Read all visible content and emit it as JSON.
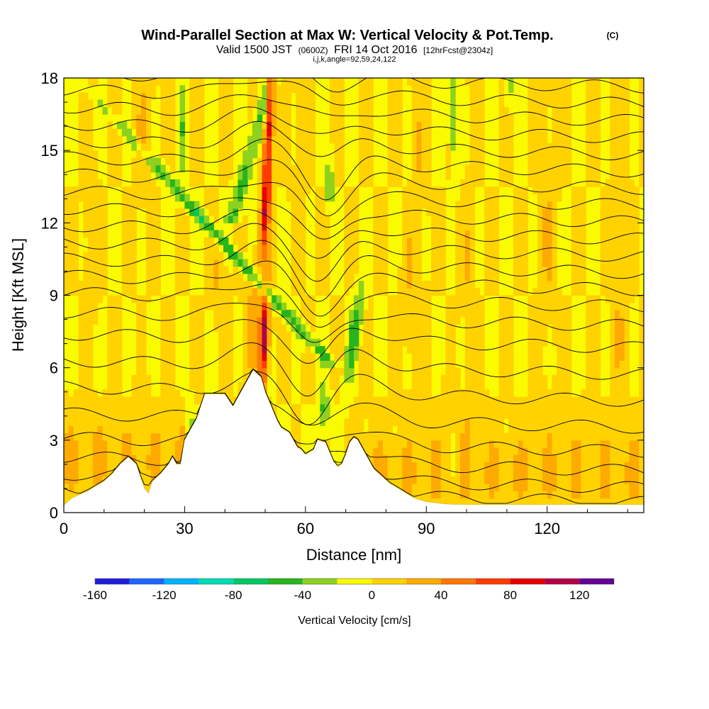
{
  "chart_data": {
    "type": "heatmap",
    "title": "Wind-Parallel Section at Max W: Vertical Velocity & Pot.Temp.",
    "title_mark": "(C)",
    "subtitle_valid": "Valid 1500 JST",
    "subtitle_utc": "(0600Z)",
    "subtitle_date": "FRI 14 Oct 2016",
    "subtitle_fcst": "[12hrFcst@2304z]",
    "subtitle_indices": "i,j,k,angle=92,59,24,122",
    "xlabel": "Distance [nm]",
    "ylabel": "Height [Kft MSL]",
    "xlim": [
      0,
      144
    ],
    "ylim": [
      0,
      18
    ],
    "x_ticks": [
      "0",
      "30",
      "60",
      "90",
      "120"
    ],
    "x_tick_values": [
      0,
      30,
      60,
      90,
      120
    ],
    "y_ticks": [
      "0",
      "3",
      "6",
      "9",
      "12",
      "15",
      "18"
    ],
    "y_tick_values": [
      0,
      3,
      6,
      9,
      12,
      15,
      18
    ],
    "terrain": [
      [
        0,
        0.3
      ],
      [
        2,
        0.6
      ],
      [
        6,
        0.9
      ],
      [
        9,
        1.2
      ],
      [
        10,
        1.3
      ],
      [
        12,
        1.6
      ],
      [
        14,
        2.0
      ],
      [
        16,
        2.3
      ],
      [
        18,
        2.0
      ],
      [
        19,
        1.5
      ],
      [
        20,
        1.0
      ],
      [
        21,
        0.8
      ],
      [
        22,
        1.3
      ],
      [
        24,
        1.6
      ],
      [
        26,
        2.0
      ],
      [
        27,
        2.3
      ],
      [
        28,
        2.0
      ],
      [
        29,
        2.0
      ],
      [
        30,
        3.0
      ],
      [
        33,
        3.9
      ],
      [
        35,
        4.9
      ],
      [
        40,
        4.9
      ],
      [
        42,
        4.4
      ],
      [
        44,
        5.0
      ],
      [
        46,
        5.6
      ],
      [
        47,
        5.9
      ],
      [
        49,
        5.6
      ],
      [
        50,
        5.0
      ],
      [
        51,
        4.6
      ],
      [
        52,
        4.2
      ],
      [
        53,
        3.8
      ],
      [
        54,
        3.5
      ],
      [
        56,
        3.3
      ],
      [
        57,
        3.0
      ],
      [
        58,
        2.7
      ],
      [
        59,
        2.6
      ],
      [
        60,
        2.4
      ],
      [
        62,
        2.6
      ],
      [
        63,
        3.0
      ],
      [
        65,
        2.9
      ],
      [
        66,
        2.5
      ],
      [
        67,
        2.1
      ],
      [
        68,
        1.9
      ],
      [
        69,
        2.0
      ],
      [
        70,
        2.4
      ],
      [
        71,
        2.9
      ],
      [
        72,
        3.1
      ],
      [
        73,
        3.0
      ],
      [
        74,
        2.7
      ],
      [
        75,
        2.4
      ],
      [
        76,
        2.1
      ],
      [
        77,
        1.8
      ],
      [
        79,
        1.5
      ],
      [
        81,
        1.2
      ],
      [
        83,
        1.0
      ],
      [
        85,
        0.8
      ],
      [
        87,
        0.6
      ],
      [
        90,
        0.45
      ],
      [
        95,
        0.35
      ],
      [
        100,
        0.33
      ],
      [
        130,
        0.33
      ],
      [
        144,
        0.33
      ]
    ],
    "updraft_max_cm_s": 120,
    "downdraft_max_cm_s": -60,
    "colorbar": {
      "label": "Vertical Velocity [cm/s]",
      "tick_labels": [
        "-160",
        "-120",
        "-80",
        "-40",
        "0",
        "40",
        "80",
        "120"
      ],
      "tick_values": [
        -160,
        -120,
        -80,
        -40,
        0,
        40,
        80,
        120
      ],
      "range": [
        -160,
        140
      ],
      "colors": [
        "#1e1edc",
        "#1e64ff",
        "#00b4ff",
        "#00dcb4",
        "#00c864",
        "#28b41e",
        "#8cd21e",
        "#fafa00",
        "#ffd200",
        "#ffaa00",
        "#ff7800",
        "#ff3c00",
        "#e60000",
        "#b40046",
        "#640096"
      ]
    },
    "theta_contour_interval_K": 2
  }
}
